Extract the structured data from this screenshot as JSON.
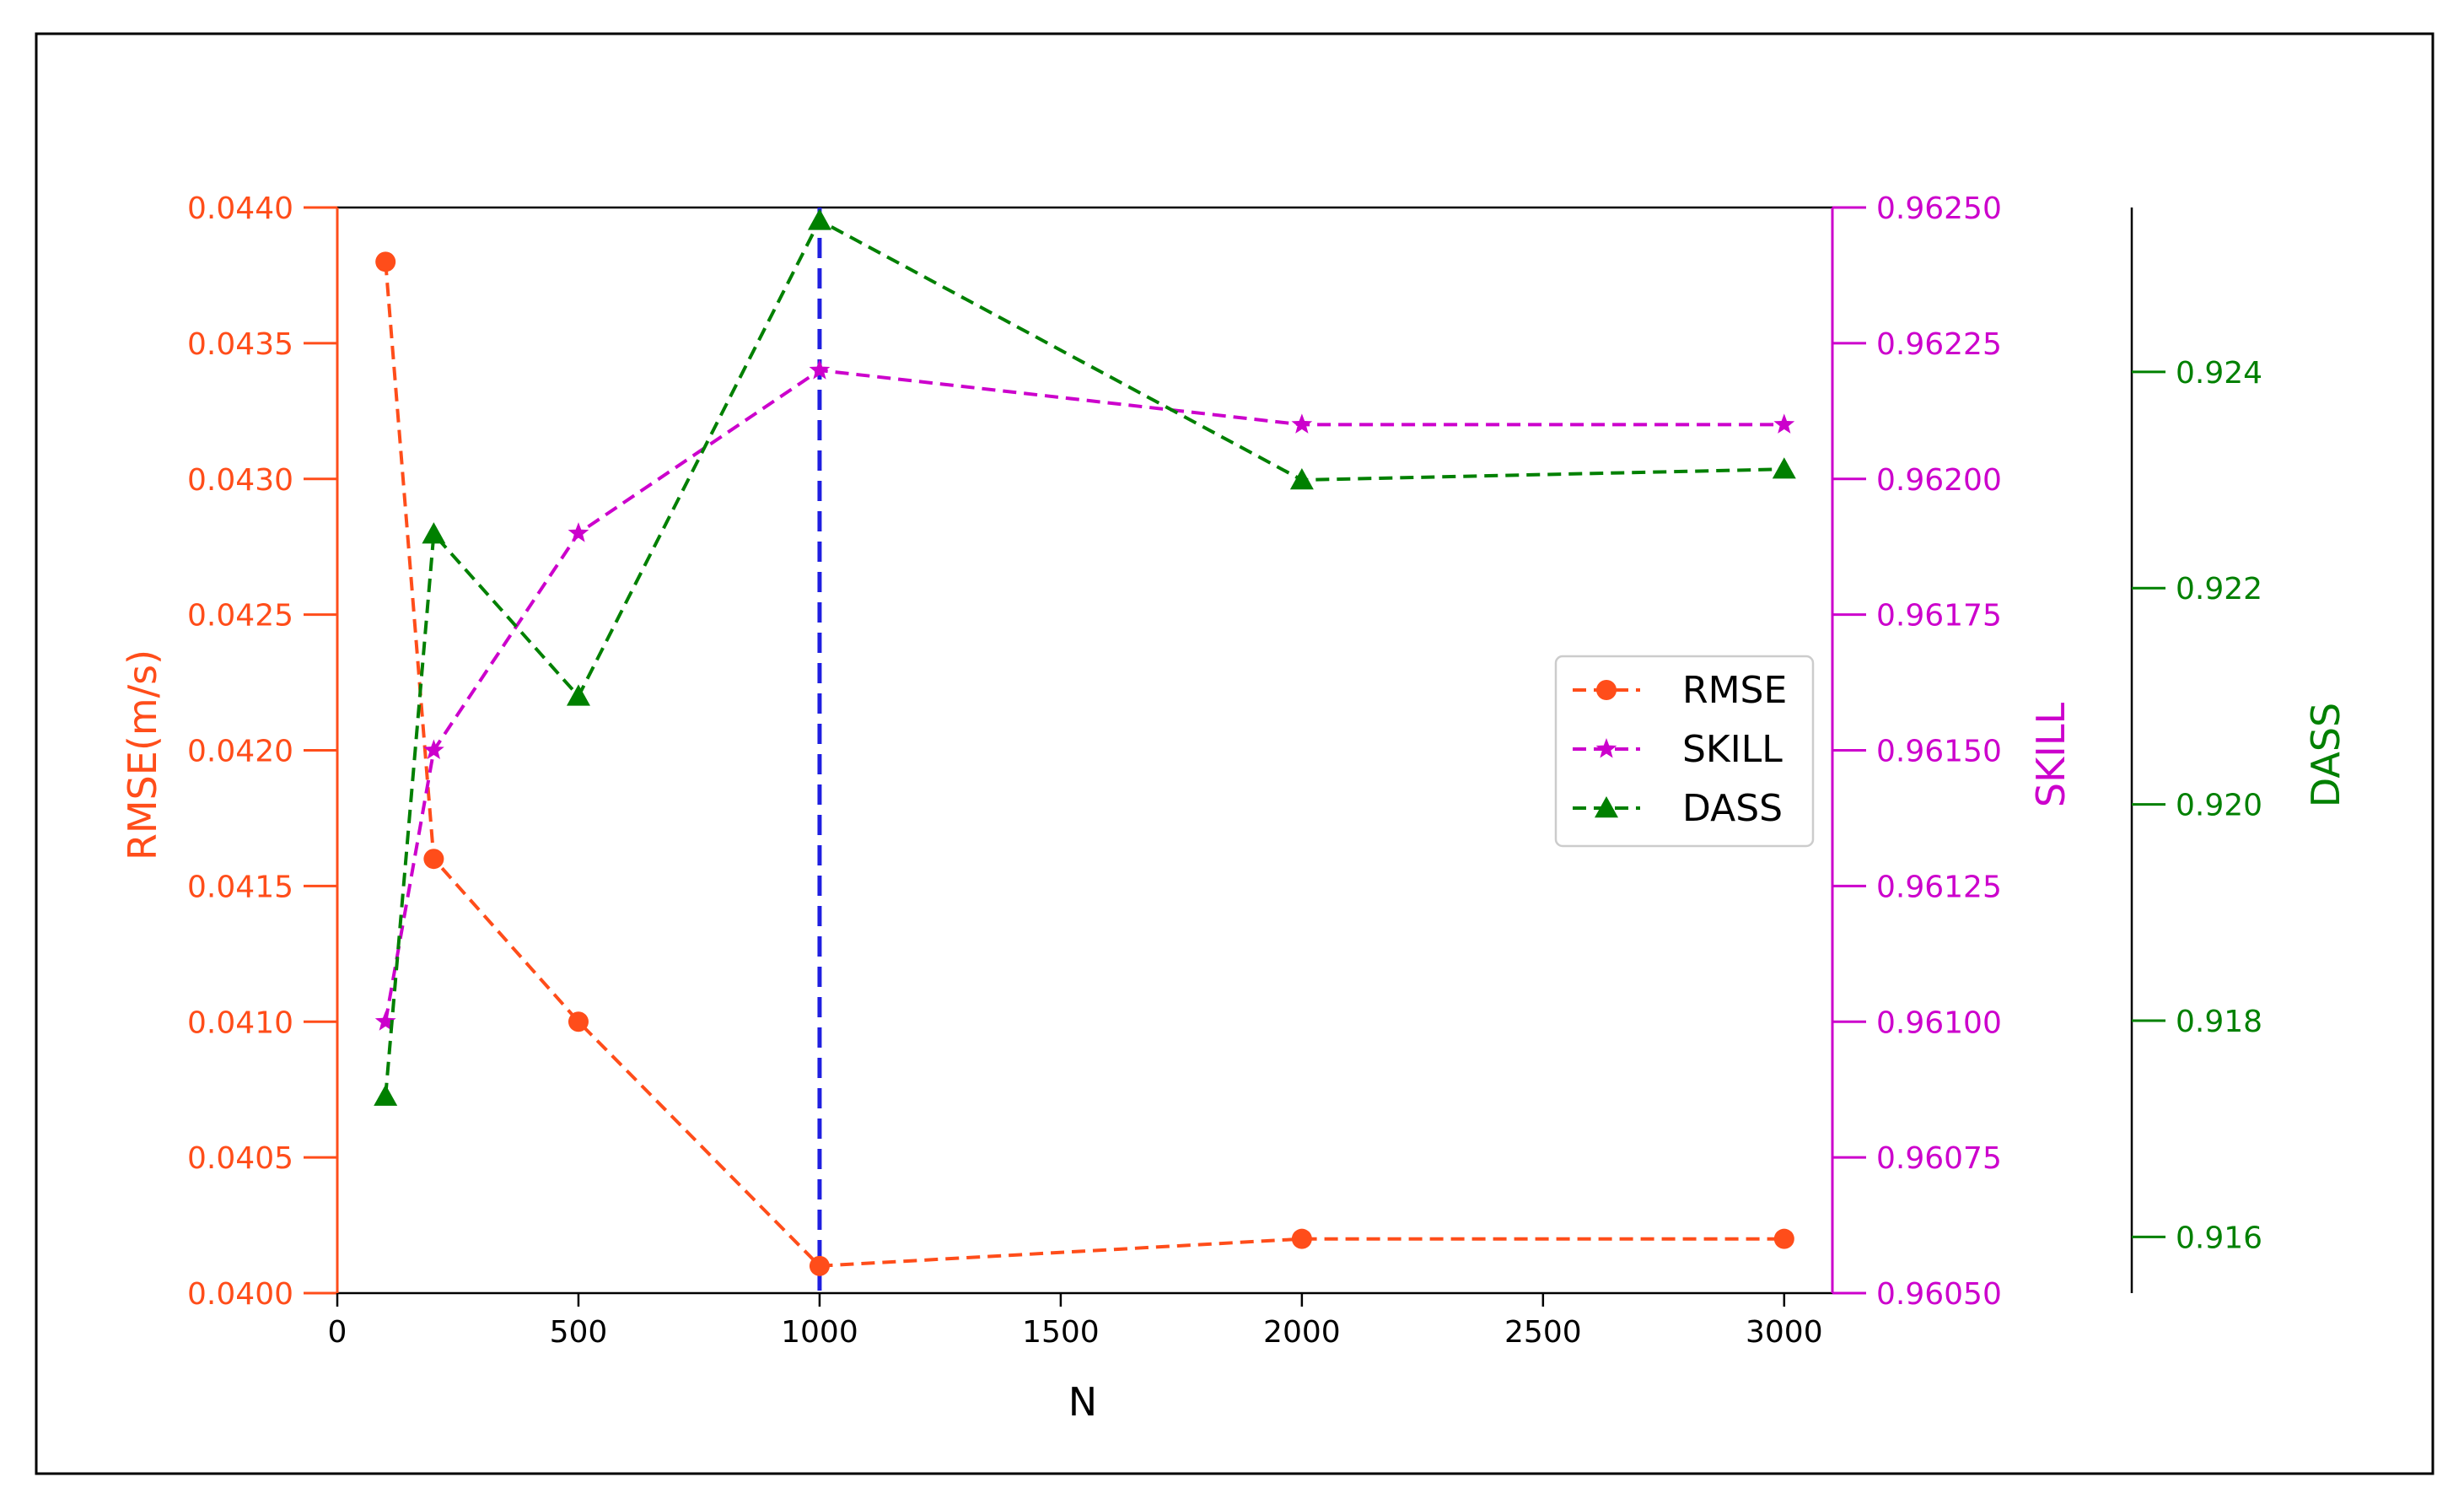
{
  "chart_data": {
    "type": "line",
    "xlabel": "N",
    "x": [
      100,
      200,
      500,
      1000,
      2000,
      3000
    ],
    "xlim": [
      0,
      3100
    ],
    "xticks": [
      0,
      500,
      1000,
      1500,
      2000,
      2500,
      3000
    ],
    "vline": {
      "x": 1000,
      "color": "#1f1fe0"
    },
    "axes": {
      "rmse": {
        "label": "RMSE(m/s)",
        "color": "#ff4d1a",
        "lim": [
          0.04,
          0.044
        ],
        "ticks": [
          "0.0400",
          "0.0405",
          "0.0410",
          "0.0415",
          "0.0420",
          "0.0425",
          "0.0430",
          "0.0435",
          "0.0440"
        ]
      },
      "skill": {
        "label": "SKILL",
        "color": "#cc00cc",
        "lim": [
          0.9605,
          0.9625
        ],
        "ticks": [
          "0.96050",
          "0.96075",
          "0.96100",
          "0.96125",
          "0.96150",
          "0.96175",
          "0.96200",
          "0.96225",
          "0.96250"
        ]
      },
      "dass": {
        "label": "DASS",
        "color": "#008000",
        "lim": [
          0.91548,
          0.92552
        ],
        "ticks": [
          "0.916",
          "0.918",
          "0.920",
          "0.922",
          "0.924"
        ]
      }
    },
    "series": [
      {
        "name": "RMSE",
        "axis": "rmse",
        "marker": "circle",
        "color": "#ff4d1a",
        "values": [
          0.0438,
          0.0416,
          0.041,
          0.0401,
          0.0402,
          0.0402
        ]
      },
      {
        "name": "SKILL",
        "axis": "skill",
        "marker": "star",
        "color": "#cc00cc",
        "values": [
          0.961,
          0.9615,
          0.9619,
          0.9622,
          0.9621,
          0.9621
        ]
      },
      {
        "name": "DASS",
        "axis": "dass",
        "marker": "triangle",
        "color": "#008000",
        "values": [
          0.9173,
          0.9225,
          0.921,
          0.9254,
          0.923,
          0.9231
        ]
      }
    ],
    "legend": {
      "placement": "center-right"
    },
    "grid": false
  }
}
